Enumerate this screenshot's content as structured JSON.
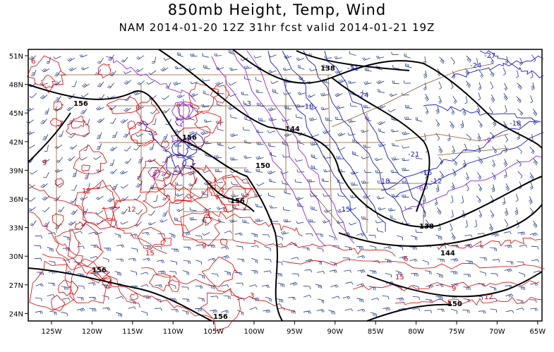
{
  "title": "850mb Height, Temp, Wind",
  "subtitle": "NAM 2014-01-20 12Z 31hr fcst valid 2014-01-21 19Z",
  "axes": {
    "lon_ticks": [
      "125W",
      "120W",
      "115W",
      "110W",
      "105W",
      "100W",
      "95W",
      "90W",
      "85W",
      "80W",
      "75W",
      "70W",
      "65W"
    ],
    "lat_ticks": [
      "51N",
      "48N",
      "45N",
      "42N",
      "39N",
      "36N",
      "33N",
      "30N",
      "27N",
      "24N"
    ]
  },
  "height_labels": [
    "138",
    "144",
    "150",
    "156",
    "138",
    "144",
    "150",
    "156",
    "156",
    "156",
    "156"
  ],
  "temp_labels_cold": [
    "-27",
    "-24",
    "-21",
    "-18",
    "-15",
    "-12",
    "-18",
    "-3",
    "-21",
    "-24",
    "-15",
    "-18",
    "-9",
    "-6"
  ],
  "temp_labels_warm": [
    "6",
    "9",
    "12",
    "15",
    "3",
    "6",
    "9",
    "12",
    "15",
    "12",
    "9",
    "6"
  ],
  "colors": {
    "height": "#000000",
    "temp_cold": "#1a1acc",
    "temp_zero": "#8a2be2",
    "temp_warm": "#dd0000",
    "wind": "#1f3a8a",
    "borders": "#8b5a2b"
  }
}
